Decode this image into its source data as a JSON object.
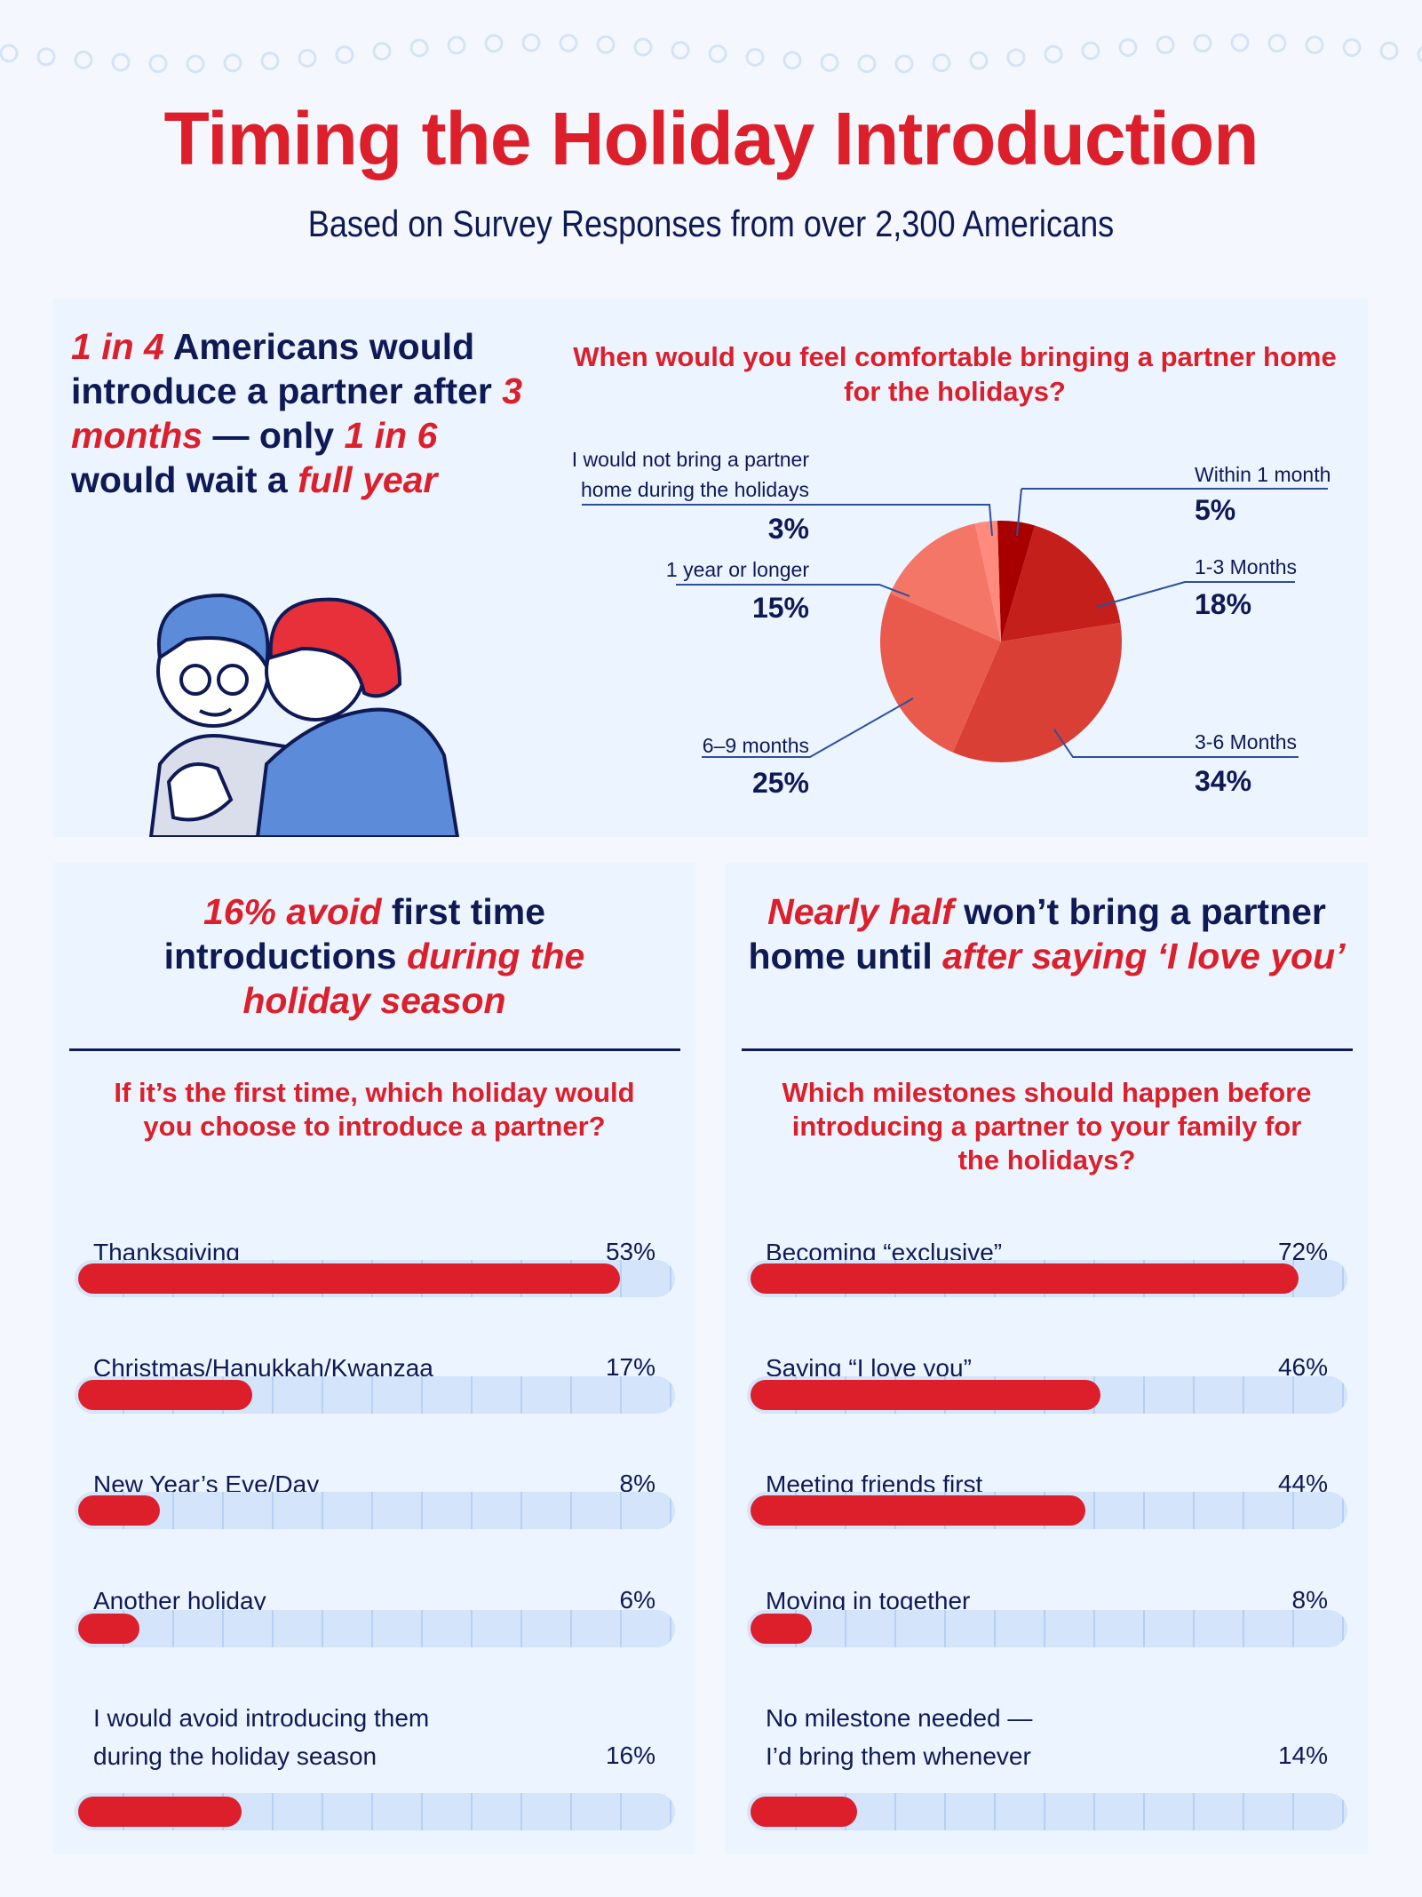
{
  "title": "Timing the Holiday Introduction",
  "subtitle": "Based on Survey Responses from over 2,300 Americans",
  "headline": {
    "p0": "1 in 4",
    "p1": " Americans would introduce a partner after ",
    "p2": "3 months",
    "p3": " — only ",
    "p4": "1 in 6",
    "p5": " would wait a ",
    "p6": "full year"
  },
  "colors": {
    "red": "#DC1F2A",
    "navy": "#0F1A55",
    "track": "#D3E4FB"
  },
  "chart_data": [
    {
      "type": "pie",
      "title": "When would you feel comfortable bringing a partner home for the holidays?",
      "categories": [
        "Within 1 month",
        "1-3 Months",
        "3-6 Months",
        "6–9 months",
        "1 year or longer",
        "I would not bring a partner home during the holidays"
      ],
      "values": [
        5,
        18,
        34,
        25,
        15,
        3
      ],
      "labels": [
        "5%",
        "18%",
        "34%",
        "25%",
        "15%",
        "3%"
      ],
      "label_lines": [
        [
          "Within 1 month"
        ],
        [
          "1-3 Months"
        ],
        [
          "3-6 Months"
        ],
        [
          "6–9 months"
        ],
        [
          "1 year or longer"
        ],
        [
          "I would not bring a partner",
          "home during the holidays"
        ]
      ],
      "colors": [
        "#A80000",
        "#C41F1A",
        "#D93F35",
        "#E95A4D",
        "#F47666",
        "#FF8A7D"
      ]
    },
    {
      "type": "bar",
      "title": "If it’s the first time, which holiday would you choose to introduce a partner?",
      "heading": {
        "p0": "16% avoid",
        "p1": " first time introductions ",
        "p2": "during the holiday season"
      },
      "categories": [
        [
          "Thanksgiving"
        ],
        [
          "Christmas/Hanukkah/Kwanzaa"
        ],
        [
          "New Year’s Eve/Day"
        ],
        [
          "Another holiday"
        ],
        [
          "I would avoid introducing them",
          "during the holiday season"
        ]
      ],
      "values": [
        53,
        17,
        8,
        6,
        16
      ],
      "labels": [
        "53%",
        "17%",
        "8%",
        "6%",
        "16%"
      ],
      "scale_max": 58
    },
    {
      "type": "bar",
      "title": "Which milestones should happen before introducing a partner to your family for the holidays?",
      "heading": {
        "p0": "Nearly half",
        "p1": " won’t bring a partner home until ",
        "p2": "after saying ‘I love you’"
      },
      "categories": [
        [
          "Becoming “exclusive”"
        ],
        [
          "Saying “I love you”"
        ],
        [
          "Meeting friends first"
        ],
        [
          "Moving in together"
        ],
        [
          "No milestone needed —",
          "I’d bring them whenever"
        ]
      ],
      "values": [
        72,
        46,
        44,
        8,
        14
      ],
      "labels": [
        "72%",
        "46%",
        "44%",
        "8%",
        "14%"
      ],
      "scale_max": 78
    }
  ]
}
